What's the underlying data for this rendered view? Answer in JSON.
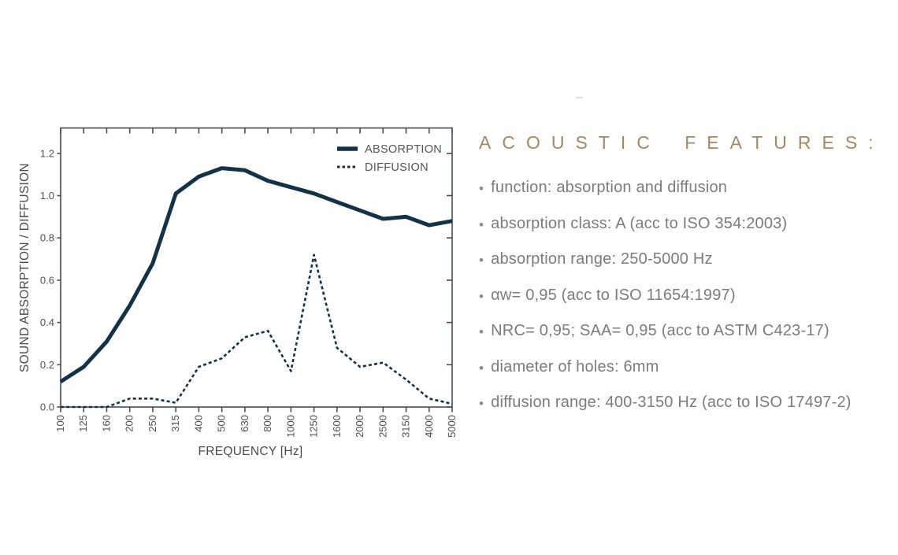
{
  "panel": {
    "heading": "ACOUSTIC FEATURES:",
    "bullets": [
      "function: absorption and diffusion",
      "absorption class: A (acc to ISO 354:2003)",
      "absorption range: 250-5000 Hz",
      "αw= 0,95 (acc to ISO 11654:1997)",
      "NRC= 0,95; SAA= 0,95 (acc to ASTM C423-17)",
      "diameter of holes: 6mm",
      "diffusion range: 400-3150 Hz (acc to ISO 17497-2)"
    ]
  },
  "icons": {
    "bullet": "•"
  },
  "colors": {
    "accent_gold": "#a6885d",
    "line_navy": "#113349",
    "spine_gray": "#414d57",
    "text_gray": "#7b7b7b"
  },
  "chart_data": {
    "type": "line",
    "title": "",
    "xlabel": "FREQUENCY [Hz]",
    "ylabel": "SOUND ABSORPTION / DIFFUSION",
    "categories": [
      "100",
      "125",
      "160",
      "200",
      "250",
      "315",
      "400",
      "500",
      "630",
      "800",
      "1000",
      "1250",
      "1600",
      "2000",
      "2500",
      "3150",
      "4000",
      "5000"
    ],
    "yticks": [
      0.0,
      0.2,
      0.4,
      0.6,
      0.8,
      1.0,
      1.2
    ],
    "ylim": [
      0,
      1.32
    ],
    "grid": false,
    "legend_position": "top-right-inside",
    "series": [
      {
        "name": "ABSORPTION",
        "style": "solid",
        "color": "#113349",
        "values": [
          0.12,
          0.19,
          0.31,
          0.48,
          0.68,
          1.01,
          1.09,
          1.13,
          1.12,
          1.07,
          1.04,
          1.01,
          0.97,
          0.93,
          0.89,
          0.9,
          0.86,
          0.88
        ]
      },
      {
        "name": "DIFFUSION",
        "style": "dashed",
        "color": "#113349",
        "values": [
          0.0,
          0.0,
          0.0,
          0.04,
          0.04,
          0.02,
          0.19,
          0.23,
          0.33,
          0.36,
          0.17,
          0.72,
          0.28,
          0.19,
          0.21,
          0.13,
          0.04,
          0.015
        ]
      }
    ]
  }
}
